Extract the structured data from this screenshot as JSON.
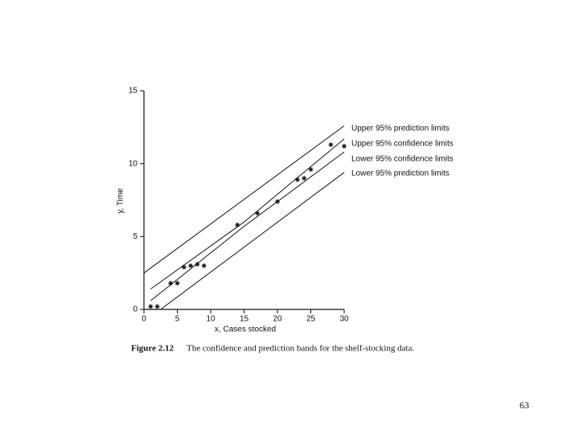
{
  "chart_data": {
    "type": "scatter",
    "xlabel": "x, Cases stocked",
    "ylabel": "y, Time",
    "xlim": [
      0,
      30
    ],
    "ylim": [
      0,
      15
    ],
    "xticks": [
      0,
      5,
      10,
      15,
      20,
      25,
      30
    ],
    "yticks": [
      0,
      5,
      10,
      15
    ],
    "color": "#111111",
    "series": [
      {
        "type": "line",
        "name": "Upper 95% prediction limits",
        "x": [
          0,
          30
        ],
        "values": [
          2.5,
          12.6
        ]
      },
      {
        "type": "line",
        "name": "Upper 95% confidence limits",
        "x": [
          1,
          15,
          30
        ],
        "values": [
          1.4,
          6.0,
          11.7
        ]
      },
      {
        "type": "line",
        "name": "Lower 95% confidence limits",
        "x": [
          1,
          15,
          30
        ],
        "values": [
          0.6,
          5.7,
          10.8
        ]
      },
      {
        "type": "line",
        "name": "Lower 95% prediction limits",
        "x": [
          2.5,
          30
        ],
        "values": [
          0,
          9.4
        ]
      },
      {
        "type": "scatter",
        "x": [
          1,
          2,
          4,
          5,
          6,
          7,
          8,
          9,
          14,
          17,
          20,
          23,
          24,
          25,
          28,
          30
        ],
        "values": [
          0.2,
          0.2,
          1.8,
          1.8,
          2.9,
          3.0,
          3.1,
          3.0,
          5.8,
          6.6,
          7.4,
          8.9,
          9.0,
          9.6,
          11.3,
          11.2
        ]
      }
    ]
  },
  "caption_label": "Figure 2.12",
  "caption_text": "The confidence and prediction bands for the shelf-stocking data.",
  "page_number": "63"
}
